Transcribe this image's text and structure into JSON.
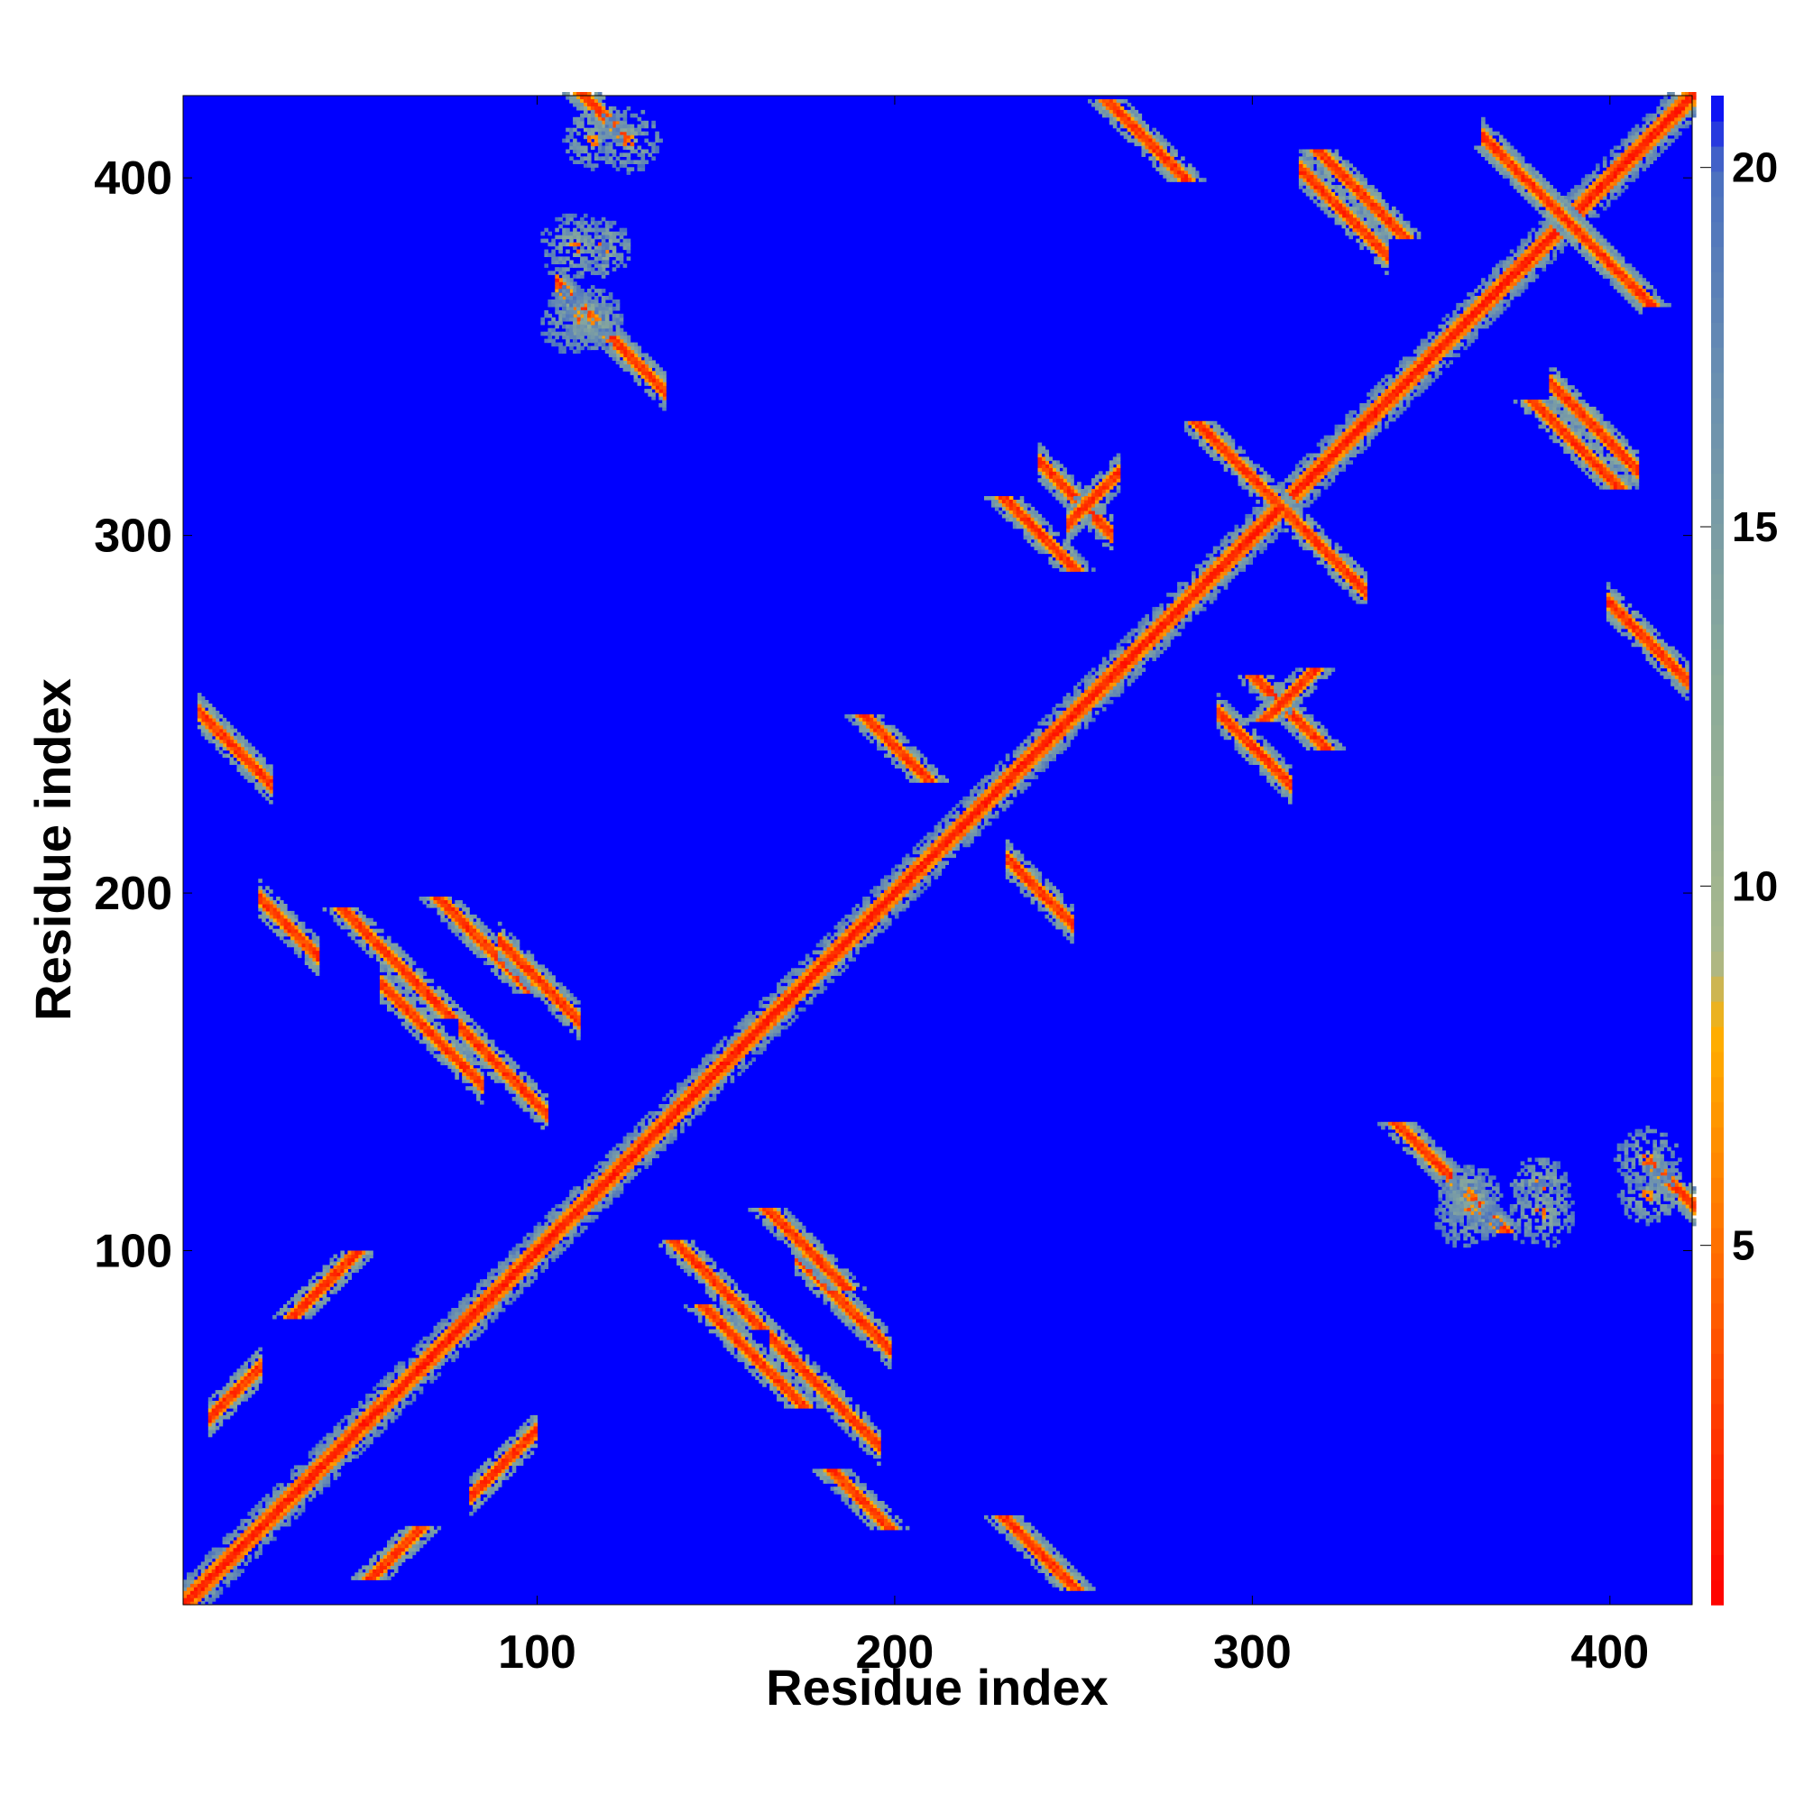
{
  "chart_data": {
    "type": "heatmap",
    "title": "",
    "xlabel": "Residue index",
    "ylabel": "Residue index",
    "n_residues": 423,
    "xlim": [
      1,
      423
    ],
    "ylim": [
      1,
      423
    ],
    "x_ticks": [
      100,
      200,
      300,
      400
    ],
    "y_ticks": [
      100,
      200,
      300,
      400
    ],
    "colorbar": {
      "ticks": [
        5,
        10,
        15,
        20
      ],
      "range": [
        0,
        21
      ],
      "stops": [
        {
          "value": 0,
          "color": "#ff0000"
        },
        {
          "value": 4,
          "color": "#ff5a00"
        },
        {
          "value": 6.5,
          "color": "#ff9000"
        },
        {
          "value": 8,
          "color": "#ffb000"
        },
        {
          "value": 9,
          "color": "#a8b88c"
        },
        {
          "value": 13,
          "color": "#8aaa9a"
        },
        {
          "value": 17,
          "color": "#6a8fb0"
        },
        {
          "value": 20,
          "color": "#4a6fc0"
        },
        {
          "value": 21,
          "color": "#0000ff"
        }
      ],
      "background_color": "#0000ff"
    },
    "contact_features": [
      {
        "kind": "diagonal",
        "start": 1,
        "end": 423
      },
      {
        "kind": "antiparallel",
        "center": [
          60,
          180
        ],
        "len": 30
      },
      {
        "kind": "antiparallel",
        "center": [
          85,
          185
        ],
        "len": 26
      },
      {
        "kind": "antiparallel",
        "center": [
          160,
          70
        ],
        "len": 28
      },
      {
        "kind": "antiparallel",
        "center": [
          150,
          90
        ],
        "len": 24
      },
      {
        "kind": "antiparallel",
        "center": [
          175,
          100
        ],
        "len": 22
      },
      {
        "kind": "antiparallel",
        "center": [
          240,
          15
        ],
        "len": 20
      },
      {
        "kind": "antiparallel",
        "center": [
          190,
          30
        ],
        "len": 16
      },
      {
        "kind": "antiparallel",
        "center": [
          355,
          120
        ],
        "len": 30
      },
      {
        "kind": "antiparallel",
        "center": [
          115,
          420
        ],
        "len": 18
      },
      {
        "kind": "antiparallel",
        "center": [
          200,
          240
        ],
        "len": 18
      },
      {
        "kind": "antiparallel",
        "center": [
          310,
          250
        ],
        "len": 20
      },
      {
        "kind": "antiparallel",
        "center": [
          295,
          320
        ],
        "len": 22
      },
      {
        "kind": "antiparallel",
        "center": [
          380,
          395
        ],
        "len": 26
      },
      {
        "kind": "antiparallel",
        "center": [
          390,
          325
        ],
        "len": 24
      },
      {
        "kind": "antiparallel",
        "center": [
          400,
          375
        ],
        "len": 22
      },
      {
        "kind": "antiparallel",
        "center": [
          330,
          395
        ],
        "len": 24
      },
      {
        "kind": "antiparallel",
        "center": [
          270,
          410
        ],
        "len": 22
      },
      {
        "kind": "antiparallel",
        "center": [
          240,
          300
        ],
        "len": 20
      },
      {
        "kind": "parallel",
        "center": [
          40,
          90
        ],
        "len": 18
      },
      {
        "kind": "parallel",
        "center": [
          60,
          15
        ],
        "len": 14
      },
      {
        "kind": "parallel",
        "center": [
          310,
          255
        ],
        "len": 14
      },
      {
        "kind": "blob",
        "center": [
          110,
          360
        ],
        "size": 10
      },
      {
        "kind": "blob",
        "center": [
          118,
          380
        ],
        "size": 8
      },
      {
        "kind": "blob",
        "center": [
          125,
          410
        ],
        "size": 9
      },
      {
        "kind": "blob",
        "center": [
          380,
          110
        ],
        "size": 10
      },
      {
        "kind": "blob",
        "center": [
          360,
          115
        ],
        "size": 9
      },
      {
        "kind": "blob",
        "center": [
          410,
          115
        ],
        "size": 8
      }
    ]
  }
}
